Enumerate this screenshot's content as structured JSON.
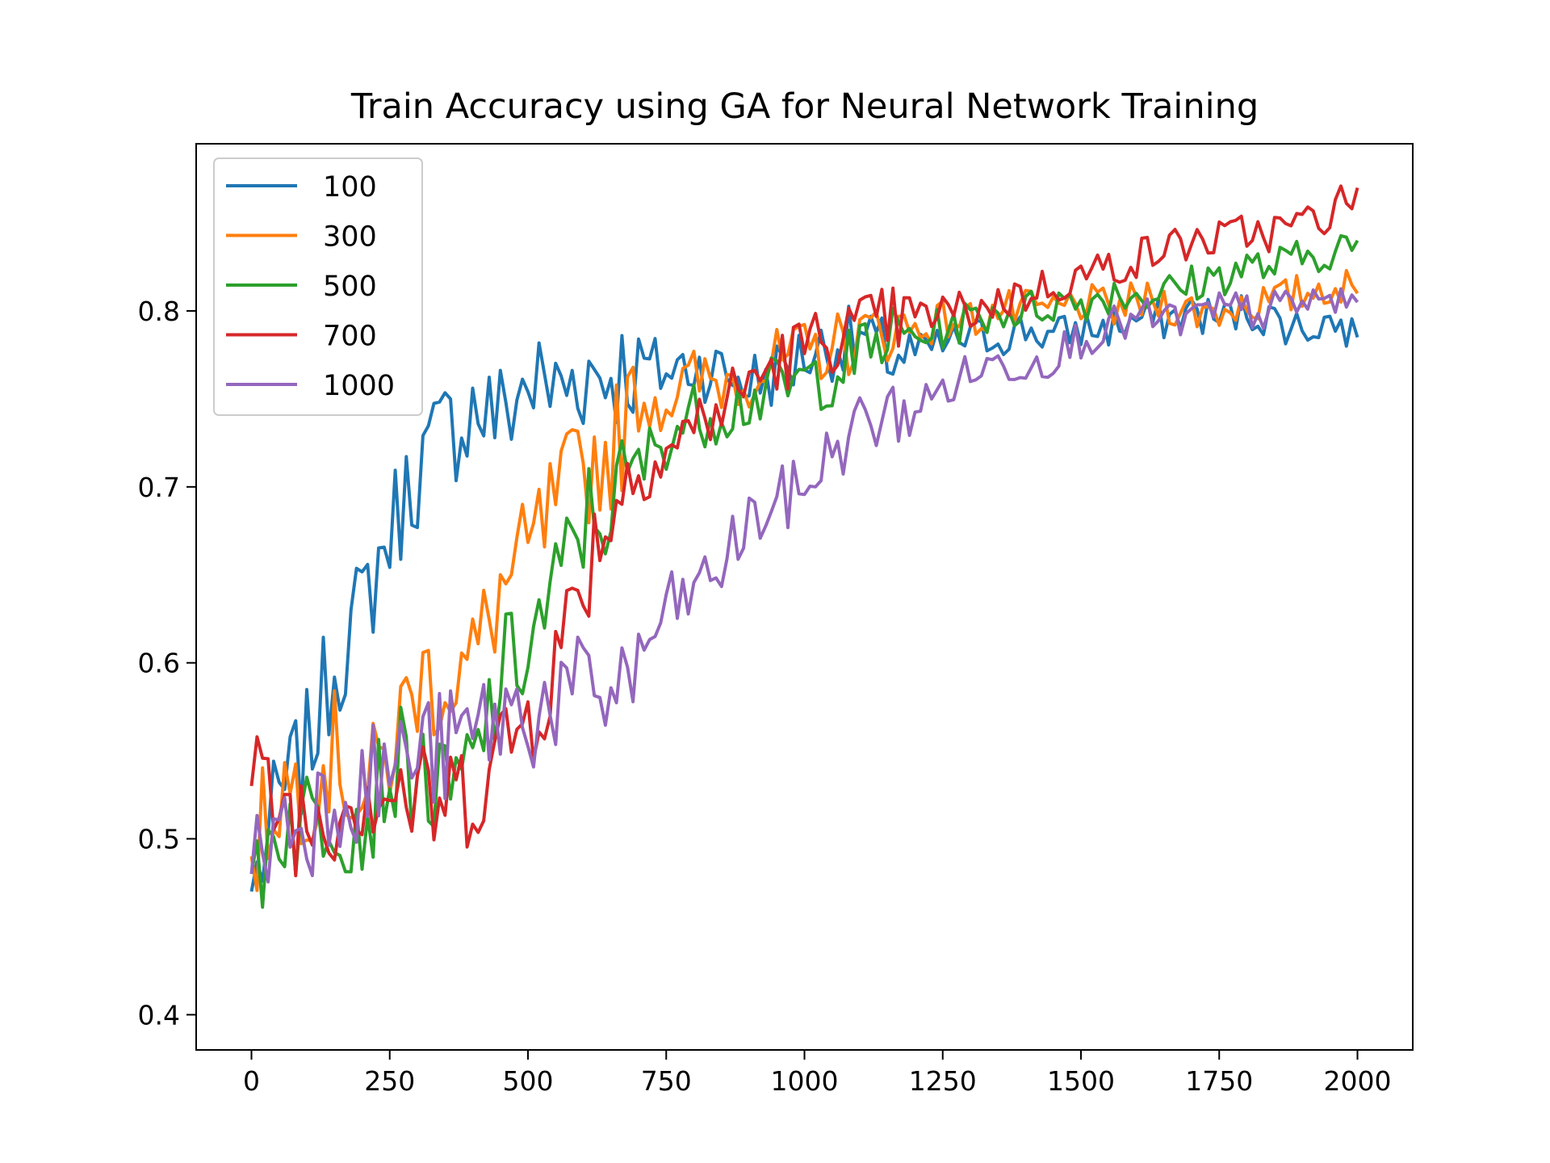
{
  "chart_data": {
    "type": "line",
    "title": "Train Accuracy using GA for Neural Network Training",
    "xlabel": "",
    "ylabel": "",
    "xlim": [
      -100,
      2100
    ],
    "ylim": [
      0.38,
      0.895
    ],
    "x_ticks": [
      0,
      250,
      500,
      750,
      1000,
      1250,
      1500,
      1750,
      2000
    ],
    "x_tick_labels": [
      "0",
      "250",
      "500",
      "750",
      "1000",
      "1250",
      "1500",
      "1750",
      "2000"
    ],
    "y_ticks": [
      0.4,
      0.5,
      0.6,
      0.7,
      0.8
    ],
    "y_tick_labels": [
      "0.4",
      "0.5",
      "0.6",
      "0.7",
      "0.8"
    ],
    "grid": false,
    "legend_position": "top-left",
    "x": [
      0,
      50,
      100,
      150,
      200,
      250,
      300,
      350,
      400,
      450,
      500,
      550,
      600,
      650,
      700,
      750,
      800,
      850,
      900,
      950,
      1000,
      1050,
      1100,
      1150,
      1200,
      1250,
      1300,
      1350,
      1400,
      1450,
      1500,
      1550,
      1600,
      1650,
      1700,
      1750,
      1800,
      1850,
      1900,
      1950,
      2000
    ],
    "series": [
      {
        "name": "100",
        "color": "#1f77b4",
        "values": [
          0.47,
          0.52,
          0.55,
          0.6,
          0.63,
          0.675,
          0.71,
          0.73,
          0.745,
          0.74,
          0.76,
          0.755,
          0.765,
          0.765,
          0.77,
          0.765,
          0.77,
          0.765,
          0.76,
          0.765,
          0.775,
          0.78,
          0.785,
          0.775,
          0.775,
          0.78,
          0.785,
          0.785,
          0.79,
          0.785,
          0.79,
          0.79,
          0.795,
          0.795,
          0.8,
          0.795,
          0.8,
          0.795,
          0.79,
          0.795,
          0.785
        ]
      },
      {
        "name": "300",
        "color": "#ff7f0e",
        "values": [
          0.49,
          0.53,
          0.53,
          0.55,
          0.52,
          0.55,
          0.59,
          0.59,
          0.6,
          0.64,
          0.66,
          0.69,
          0.71,
          0.72,
          0.75,
          0.75,
          0.76,
          0.76,
          0.765,
          0.77,
          0.775,
          0.78,
          0.785,
          0.79,
          0.79,
          0.795,
          0.795,
          0.8,
          0.8,
          0.8,
          0.805,
          0.8,
          0.805,
          0.805,
          0.8,
          0.8,
          0.805,
          0.805,
          0.81,
          0.815,
          0.81
        ]
      },
      {
        "name": "500",
        "color": "#2ca02c",
        "values": [
          0.48,
          0.51,
          0.51,
          0.52,
          0.51,
          0.54,
          0.54,
          0.52,
          0.54,
          0.59,
          0.61,
          0.64,
          0.68,
          0.69,
          0.71,
          0.73,
          0.74,
          0.745,
          0.75,
          0.755,
          0.76,
          0.765,
          0.775,
          0.785,
          0.785,
          0.79,
          0.795,
          0.8,
          0.8,
          0.805,
          0.805,
          0.81,
          0.81,
          0.81,
          0.815,
          0.82,
          0.825,
          0.825,
          0.83,
          0.835,
          0.84
        ]
      },
      {
        "name": "700",
        "color": "#d62728",
        "values": [
          0.53,
          0.52,
          0.51,
          0.52,
          0.53,
          0.53,
          0.52,
          0.52,
          0.53,
          0.55,
          0.57,
          0.6,
          0.65,
          0.69,
          0.71,
          0.72,
          0.735,
          0.745,
          0.76,
          0.77,
          0.78,
          0.785,
          0.79,
          0.795,
          0.795,
          0.8,
          0.8,
          0.805,
          0.81,
          0.815,
          0.82,
          0.825,
          0.83,
          0.835,
          0.84,
          0.84,
          0.845,
          0.845,
          0.85,
          0.855,
          0.87
        ]
      },
      {
        "name": "1000",
        "color": "#9467bd",
        "values": [
          0.48,
          0.51,
          0.51,
          0.53,
          0.53,
          0.54,
          0.55,
          0.55,
          0.56,
          0.57,
          0.57,
          0.58,
          0.58,
          0.585,
          0.6,
          0.63,
          0.64,
          0.655,
          0.68,
          0.69,
          0.7,
          0.72,
          0.735,
          0.74,
          0.745,
          0.755,
          0.765,
          0.77,
          0.77,
          0.775,
          0.785,
          0.79,
          0.795,
          0.795,
          0.795,
          0.8,
          0.8,
          0.8,
          0.805,
          0.805,
          0.805
        ]
      }
    ]
  }
}
